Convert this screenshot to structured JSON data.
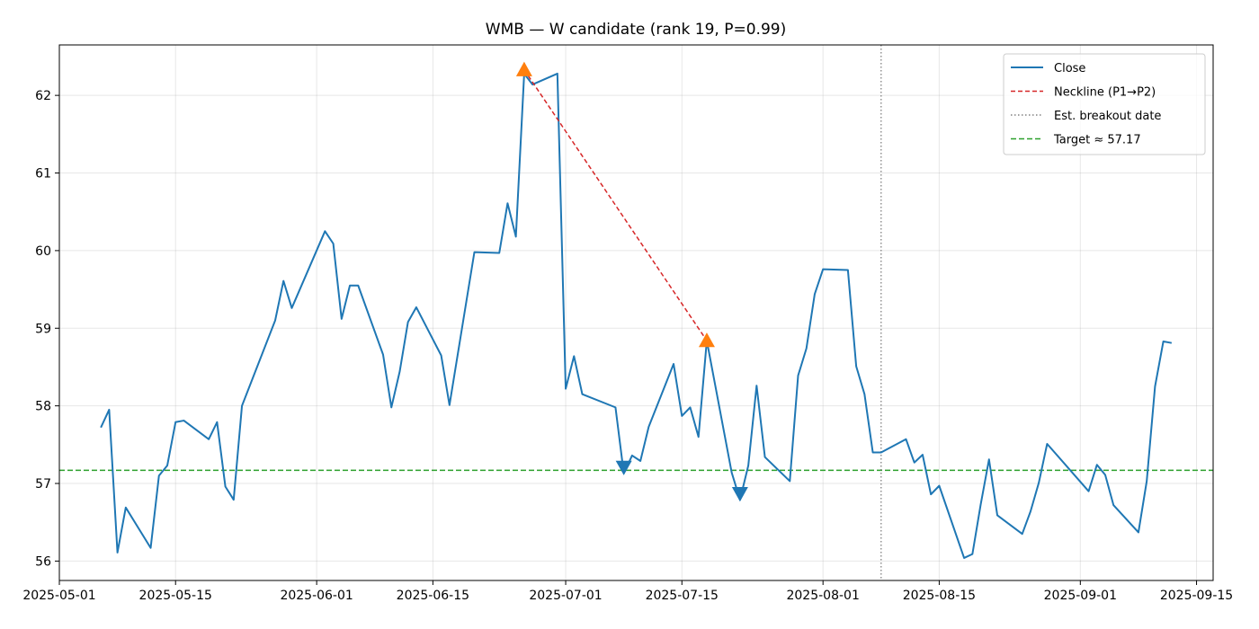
{
  "chart_data": {
    "type": "line",
    "title": "WMB — W candidate (rank 19, P=0.99)",
    "xlabel": "",
    "ylabel": "",
    "xlim": [
      "2025-05-01",
      "2025-09-17"
    ],
    "ylim": [
      55.75,
      62.65
    ],
    "x_ticks": [
      "2025-05-01",
      "2025-05-15",
      "2025-06-01",
      "2025-06-15",
      "2025-07-01",
      "2025-07-15",
      "2025-08-01",
      "2025-08-15",
      "2025-09-01",
      "2025-09-15"
    ],
    "y_ticks": [
      56,
      57,
      58,
      59,
      60,
      61,
      62
    ],
    "grid": true,
    "legend_position": "top-right",
    "series": [
      {
        "name": "Close",
        "color": "#1f77b4",
        "style": "solid",
        "x": [
          "2025-05-06",
          "2025-05-07",
          "2025-05-08",
          "2025-05-09",
          "2025-05-12",
          "2025-05-13",
          "2025-05-14",
          "2025-05-15",
          "2025-05-16",
          "2025-05-19",
          "2025-05-20",
          "2025-05-21",
          "2025-05-22",
          "2025-05-23",
          "2025-05-27",
          "2025-05-28",
          "2025-05-29",
          "2025-06-02",
          "2025-06-03",
          "2025-06-04",
          "2025-06-05",
          "2025-06-06",
          "2025-06-09",
          "2025-06-10",
          "2025-06-11",
          "2025-06-12",
          "2025-06-13",
          "2025-06-16",
          "2025-06-17",
          "2025-06-20",
          "2025-06-23",
          "2025-06-24",
          "2025-06-25",
          "2025-06-26",
          "2025-06-27",
          "2025-06-30",
          "2025-07-01",
          "2025-07-02",
          "2025-07-03",
          "2025-07-07",
          "2025-07-08",
          "2025-07-09",
          "2025-07-10",
          "2025-07-11",
          "2025-07-14",
          "2025-07-15",
          "2025-07-16",
          "2025-07-17",
          "2025-07-18",
          "2025-07-21",
          "2025-07-22",
          "2025-07-23",
          "2025-07-24",
          "2025-07-25",
          "2025-07-28",
          "2025-07-29",
          "2025-07-30",
          "2025-07-31",
          "2025-08-01",
          "2025-08-04",
          "2025-08-05",
          "2025-08-06",
          "2025-08-07",
          "2025-08-08",
          "2025-08-11",
          "2025-08-12",
          "2025-08-13",
          "2025-08-14",
          "2025-08-15",
          "2025-08-18",
          "2025-08-19",
          "2025-08-20",
          "2025-08-21",
          "2025-08-22",
          "2025-08-25",
          "2025-08-26",
          "2025-08-27",
          "2025-08-28",
          "2025-09-02",
          "2025-09-03",
          "2025-09-04",
          "2025-09-05",
          "2025-09-08",
          "2025-09-09",
          "2025-09-10",
          "2025-09-11",
          "2025-09-12"
        ],
        "y": [
          57.72,
          57.95,
          56.11,
          56.69,
          56.17,
          57.1,
          57.23,
          57.79,
          57.81,
          57.57,
          57.79,
          56.96,
          56.79,
          58.0,
          59.1,
          59.61,
          59.26,
          60.25,
          60.09,
          59.12,
          59.55,
          59.55,
          58.66,
          57.98,
          58.44,
          59.08,
          59.27,
          58.65,
          58.01,
          59.98,
          59.97,
          60.61,
          60.18,
          62.28,
          62.14,
          62.28,
          58.22,
          58.64,
          58.15,
          57.98,
          57.13,
          57.36,
          57.29,
          57.73,
          58.54,
          57.87,
          57.98,
          57.6,
          58.84,
          57.14,
          56.79,
          57.23,
          58.26,
          57.34,
          57.03,
          58.39,
          58.74,
          59.44,
          59.76,
          59.75,
          58.51,
          58.15,
          57.4,
          57.4,
          57.57,
          57.27,
          57.37,
          56.86,
          56.97,
          56.04,
          56.09,
          56.73,
          57.31,
          56.59,
          56.35,
          56.64,
          57.01,
          57.51,
          56.9,
          57.24,
          57.11,
          56.72,
          56.37,
          57.03,
          58.25,
          58.83,
          58.81
        ]
      }
    ],
    "markers": [
      {
        "type": "peak",
        "x": "2025-06-26",
        "y": 62.33,
        "color": "#ff7f0e",
        "shape": "triangle-up"
      },
      {
        "type": "peak",
        "x": "2025-07-18",
        "y": 58.84,
        "color": "#ff7f0e",
        "shape": "triangle-up"
      },
      {
        "type": "trough",
        "x": "2025-07-08",
        "y": 57.21,
        "color": "#1f77b4",
        "shape": "triangle-down"
      },
      {
        "type": "trough",
        "x": "2025-07-22",
        "y": 56.87,
        "color": "#1f77b4",
        "shape": "triangle-down"
      }
    ],
    "neckline": {
      "label": "Neckline (P1→P2)",
      "color": "#d62728",
      "style": "dashed",
      "x": [
        "2025-06-26",
        "2025-07-18"
      ],
      "y": [
        62.33,
        58.84
      ]
    },
    "breakout": {
      "label": "Est. breakout date",
      "color": "#808080",
      "style": "dotted",
      "x": "2025-08-08"
    },
    "target": {
      "label": "Target ≈ 57.17",
      "color": "#2ca02c",
      "style": "dashed",
      "y": 57.17
    },
    "legend": [
      "Close",
      "Neckline (P1→P2)",
      "Est. breakout date",
      "Target ≈ 57.17"
    ]
  }
}
